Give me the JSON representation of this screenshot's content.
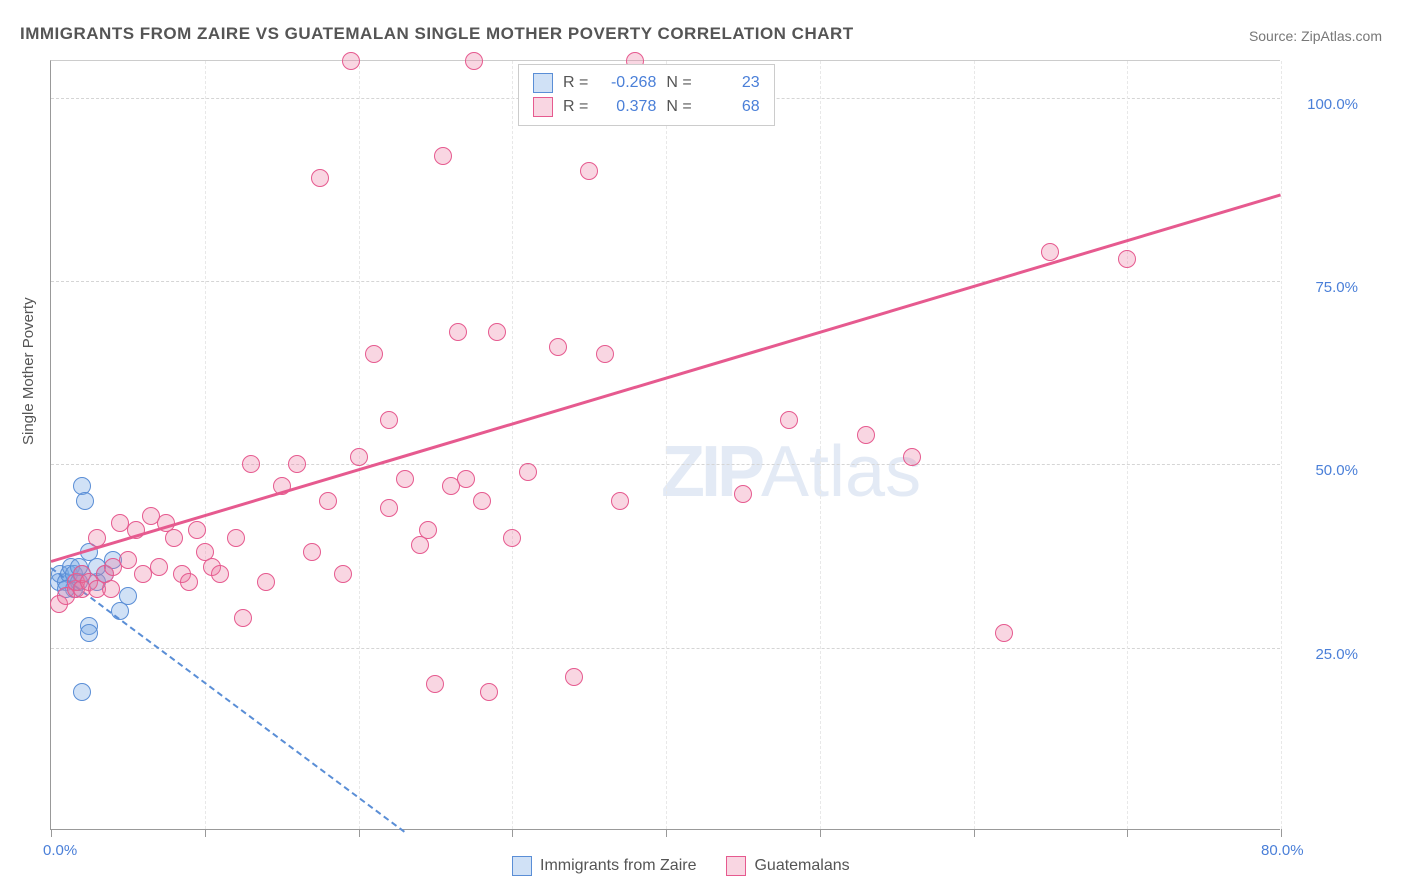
{
  "title": "IMMIGRANTS FROM ZAIRE VS GUATEMALAN SINGLE MOTHER POVERTY CORRELATION CHART",
  "source": "Source: ZipAtlas.com",
  "y_axis_title": "Single Mother Poverty",
  "watermark_a": "ZIP",
  "watermark_b": "Atlas",
  "chart": {
    "type": "scatter",
    "xlim": [
      0,
      80
    ],
    "ylim": [
      0,
      105
    ],
    "y_ticks": [
      25,
      50,
      75,
      100
    ],
    "y_tick_labels": [
      "25.0%",
      "50.0%",
      "75.0%",
      "100.0%"
    ],
    "x_ticks": [
      0,
      10,
      20,
      30,
      40,
      50,
      60,
      70,
      80
    ],
    "x_tick_labels": [
      "0.0%",
      "",
      "",
      "",
      "",
      "",
      "",
      "",
      "80.0%"
    ],
    "background_color": "#ffffff",
    "grid_color": "#d5d5d5",
    "marker_radius": 9,
    "series": [
      {
        "name": "Immigrants from Zaire",
        "color_fill": "rgba(120,170,230,0.35)",
        "color_stroke": "#5a8ed6",
        "r": -0.268,
        "n": 23,
        "trend": {
          "x1": 0,
          "y1": 36,
          "x2": 23,
          "y2": 0,
          "dashed": true,
          "color": "#5a8ed6"
        },
        "points": [
          [
            0.5,
            34
          ],
          [
            0.6,
            35
          ],
          [
            1.0,
            34
          ],
          [
            1.2,
            35
          ],
          [
            1.3,
            36
          ],
          [
            1.5,
            33
          ],
          [
            1.5,
            35
          ],
          [
            1.8,
            34
          ],
          [
            2.0,
            35
          ],
          [
            2.0,
            47
          ],
          [
            2.2,
            45
          ],
          [
            2.5,
            28
          ],
          [
            2.5,
            27
          ],
          [
            3.0,
            34
          ],
          [
            3.5,
            35
          ],
          [
            4.0,
            37
          ],
          [
            4.5,
            30
          ],
          [
            5.0,
            32
          ],
          [
            2.0,
            19
          ],
          [
            2.5,
            38
          ],
          [
            3.0,
            36
          ],
          [
            1.0,
            33
          ],
          [
            1.8,
            36
          ]
        ]
      },
      {
        "name": "Guatemalans",
        "color_fill": "rgba(235,120,160,0.30)",
        "color_stroke": "#e65a8f",
        "r": 0.378,
        "n": 68,
        "trend": {
          "x1": 0,
          "y1": 37,
          "x2": 80,
          "y2": 87,
          "dashed": false,
          "color": "#e65a8f"
        },
        "points": [
          [
            0.5,
            31
          ],
          [
            1.0,
            32
          ],
          [
            1.6,
            33
          ],
          [
            1.6,
            34
          ],
          [
            2.0,
            33
          ],
          [
            2.0,
            35
          ],
          [
            2.5,
            34
          ],
          [
            3.0,
            33
          ],
          [
            3.0,
            40
          ],
          [
            3.5,
            35
          ],
          [
            3.9,
            33
          ],
          [
            4.0,
            36
          ],
          [
            4.5,
            42
          ],
          [
            5.0,
            37
          ],
          [
            5.5,
            41
          ],
          [
            6.0,
            35
          ],
          [
            6.5,
            43
          ],
          [
            7.0,
            36
          ],
          [
            7.5,
            42
          ],
          [
            8.0,
            40
          ],
          [
            8.5,
            35
          ],
          [
            9.0,
            34
          ],
          [
            9.5,
            41
          ],
          [
            10.0,
            38
          ],
          [
            10.5,
            36
          ],
          [
            11.0,
            35
          ],
          [
            12.0,
            40
          ],
          [
            12.5,
            29
          ],
          [
            13.0,
            50
          ],
          [
            14.0,
            34
          ],
          [
            15.0,
            47
          ],
          [
            16.0,
            50
          ],
          [
            17.0,
            38
          ],
          [
            17.5,
            89
          ],
          [
            18.0,
            45
          ],
          [
            19.0,
            35
          ],
          [
            19.5,
            105
          ],
          [
            20.0,
            51
          ],
          [
            21.0,
            65
          ],
          [
            22.0,
            56
          ],
          [
            22.0,
            44
          ],
          [
            23.0,
            48
          ],
          [
            24.0,
            39
          ],
          [
            24.5,
            41
          ],
          [
            25.0,
            20
          ],
          [
            25.5,
            92
          ],
          [
            26.0,
            47
          ],
          [
            26.5,
            68
          ],
          [
            27.0,
            48
          ],
          [
            27.5,
            105
          ],
          [
            28.0,
            45
          ],
          [
            28.5,
            19
          ],
          [
            29.0,
            68
          ],
          [
            30.0,
            40
          ],
          [
            31.0,
            49
          ],
          [
            33.0,
            66
          ],
          [
            34.0,
            21
          ],
          [
            35.0,
            90
          ],
          [
            36.0,
            65
          ],
          [
            37.0,
            45
          ],
          [
            38.0,
            105
          ],
          [
            45.0,
            46
          ],
          [
            48.0,
            56
          ],
          [
            53.0,
            54
          ],
          [
            62.0,
            27
          ],
          [
            65.0,
            79
          ],
          [
            70.0,
            78
          ],
          [
            56.0,
            51
          ]
        ]
      }
    ]
  },
  "legend_top": {
    "rows": [
      {
        "r_label": "R =",
        "r_value": "-0.268",
        "n_label": "N =",
        "n_value": "23"
      },
      {
        "r_label": "R =",
        "r_value": "0.378",
        "n_label": "N =",
        "n_value": "68"
      }
    ]
  },
  "legend_bottom": {
    "items": [
      "Immigrants from Zaire",
      "Guatemalans"
    ]
  }
}
